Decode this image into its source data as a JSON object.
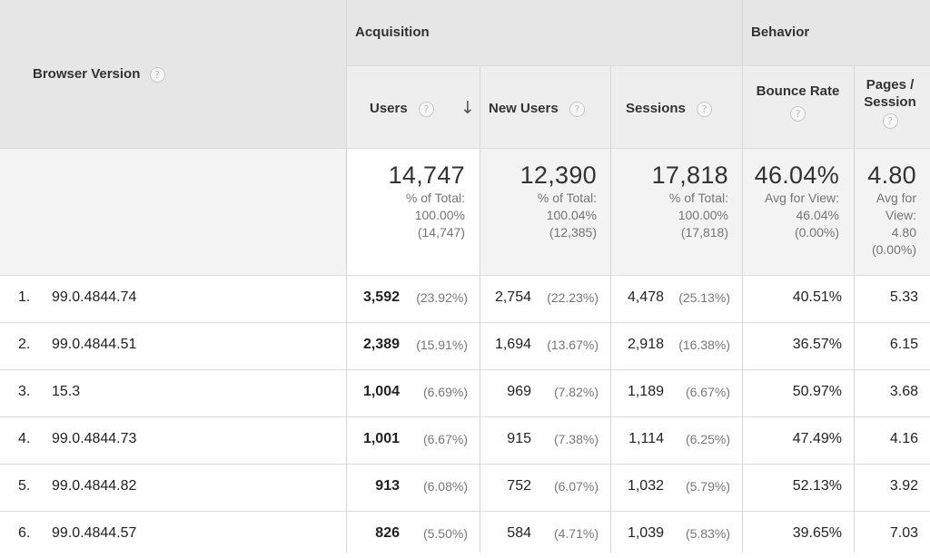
{
  "header": {
    "dimension_label": "Browser Version",
    "group_acquisition": "Acquisition",
    "group_behavior": "Behavior",
    "col_users": "Users",
    "col_new_users": "New Users",
    "col_sessions": "Sessions",
    "col_bounce_rate": "Bounce Rate",
    "col_pages_session": "Pages / Session",
    "help_glyph": "?",
    "sort_glyph": "↓"
  },
  "totals": {
    "users": {
      "value": "14,747",
      "l1": "% of Total:",
      "l2": "100.00%",
      "l3": "(14,747)"
    },
    "new_users": {
      "value": "12,390",
      "l1": "% of Total:",
      "l2": "100.04%",
      "l3": "(12,385)"
    },
    "sessions": {
      "value": "17,818",
      "l1": "% of Total:",
      "l2": "100.00%",
      "l3": "(17,818)"
    },
    "bounce_rate": {
      "value": "46.04%",
      "l1": "Avg for View:",
      "l2": "46.04%",
      "l3": "(0.00%)"
    },
    "pages_session": {
      "value": "4.80",
      "l1": "Avg for",
      "l2": "View:",
      "l3": "4.80",
      "l4": "(0.00%)"
    }
  },
  "rows": [
    {
      "num": "1.",
      "version": "99.0.4844.74",
      "users": "3,592",
      "users_pct": "(23.92%)",
      "new_users": "2,754",
      "new_users_pct": "(22.23%)",
      "sessions": "4,478",
      "sessions_pct": "(25.13%)",
      "bounce": "40.51%",
      "pages": "5.33"
    },
    {
      "num": "2.",
      "version": "99.0.4844.51",
      "users": "2,389",
      "users_pct": "(15.91%)",
      "new_users": "1,694",
      "new_users_pct": "(13.67%)",
      "sessions": "2,918",
      "sessions_pct": "(16.38%)",
      "bounce": "36.57%",
      "pages": "6.15"
    },
    {
      "num": "3.",
      "version": "15.3",
      "users": "1,004",
      "users_pct": "(6.69%)",
      "new_users": "969",
      "new_users_pct": "(7.82%)",
      "sessions": "1,189",
      "sessions_pct": "(6.67%)",
      "bounce": "50.97%",
      "pages": "3.68"
    },
    {
      "num": "4.",
      "version": "99.0.4844.73",
      "users": "1,001",
      "users_pct": "(6.67%)",
      "new_users": "915",
      "new_users_pct": "(7.38%)",
      "sessions": "1,114",
      "sessions_pct": "(6.25%)",
      "bounce": "47.49%",
      "pages": "4.16"
    },
    {
      "num": "5.",
      "version": "99.0.4844.82",
      "users": "913",
      "users_pct": "(6.08%)",
      "new_users": "752",
      "new_users_pct": "(6.07%)",
      "sessions": "1,032",
      "sessions_pct": "(5.79%)",
      "bounce": "52.13%",
      "pages": "3.92"
    },
    {
      "num": "6.",
      "version": "99.0.4844.57",
      "users": "826",
      "users_pct": "(5.50%)",
      "new_users": "584",
      "new_users_pct": "(4.71%)",
      "sessions": "1,039",
      "sessions_pct": "(5.83%)",
      "bounce": "39.65%",
      "pages": "7.03"
    }
  ]
}
